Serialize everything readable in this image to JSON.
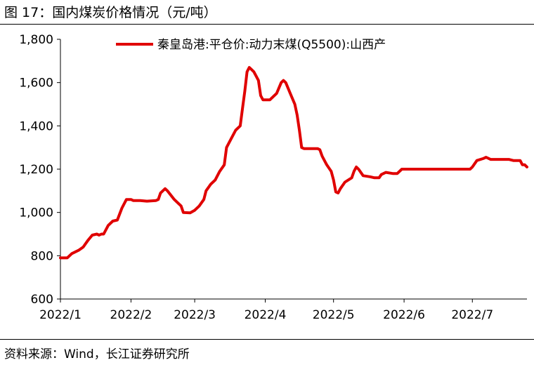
{
  "figure": {
    "title": "图 17：国内煤炭价格情况（元/吨）",
    "source": "资料来源：Wind，长江证券研究所"
  },
  "colors": {
    "series": "#e00000",
    "axis": "#000000"
  },
  "chart_data": {
    "type": "line",
    "title": "",
    "xlabel": "",
    "ylabel": "",
    "ylim": [
      600,
      1800
    ],
    "yticks": [
      600,
      800,
      1000,
      1200,
      1400,
      1600,
      1800
    ],
    "ytick_labels": [
      "600",
      "800",
      "1,000",
      "1,200",
      "1,400",
      "1,600",
      "1,800"
    ],
    "xlim": [
      "2022-01-01",
      "2022-07-25"
    ],
    "xticks": [
      "2022-01-01",
      "2022-02-01",
      "2022-03-01",
      "2022-04-01",
      "2022-05-01",
      "2022-06-01",
      "2022-07-01"
    ],
    "xtick_labels": [
      "2022/1",
      "2022/2",
      "2022/3",
      "2022/4",
      "2022/5",
      "2022/6",
      "2022/7"
    ],
    "grid": false,
    "legend": {
      "position": "top-center"
    },
    "series": [
      {
        "name": "秦皇岛港:平仓价:动力末煤(Q5500):山西产",
        "points": [
          [
            "2022-01-01",
            790
          ],
          [
            "2022-01-04",
            790
          ],
          [
            "2022-01-06",
            810
          ],
          [
            "2022-01-09",
            825
          ],
          [
            "2022-01-11",
            840
          ],
          [
            "2022-01-13",
            870
          ],
          [
            "2022-01-15",
            895
          ],
          [
            "2022-01-17",
            900
          ],
          [
            "2022-01-18",
            895
          ],
          [
            "2022-01-19",
            900
          ],
          [
            "2022-01-20",
            900
          ],
          [
            "2022-01-22",
            940
          ],
          [
            "2022-01-24",
            960
          ],
          [
            "2022-01-26",
            965
          ],
          [
            "2022-01-28",
            1020
          ],
          [
            "2022-01-30",
            1060
          ],
          [
            "2022-02-01",
            1060
          ],
          [
            "2022-02-02",
            1055
          ],
          [
            "2022-02-05",
            1055
          ],
          [
            "2022-02-08",
            1052
          ],
          [
            "2022-02-12",
            1055
          ],
          [
            "2022-02-13",
            1060
          ],
          [
            "2022-02-14",
            1090
          ],
          [
            "2022-02-16",
            1110
          ],
          [
            "2022-02-17",
            1100
          ],
          [
            "2022-02-20",
            1060
          ],
          [
            "2022-02-23",
            1030
          ],
          [
            "2022-02-24",
            1000
          ],
          [
            "2022-02-27",
            998
          ],
          [
            "2022-03-01",
            1010
          ],
          [
            "2022-03-03",
            1030
          ],
          [
            "2022-03-05",
            1060
          ],
          [
            "2022-03-06",
            1100
          ],
          [
            "2022-03-08",
            1130
          ],
          [
            "2022-03-10",
            1150
          ],
          [
            "2022-03-12",
            1190
          ],
          [
            "2022-03-14",
            1220
          ],
          [
            "2022-03-15",
            1300
          ],
          [
            "2022-03-17",
            1340
          ],
          [
            "2022-03-19",
            1380
          ],
          [
            "2022-03-21",
            1400
          ],
          [
            "2022-03-22",
            1480
          ],
          [
            "2022-03-23",
            1560
          ],
          [
            "2022-03-24",
            1650
          ],
          [
            "2022-03-25",
            1670
          ],
          [
            "2022-03-26",
            1660
          ],
          [
            "2022-03-27",
            1650
          ],
          [
            "2022-03-29",
            1610
          ],
          [
            "2022-03-30",
            1540
          ],
          [
            "2022-03-31",
            1520
          ],
          [
            "2022-04-03",
            1520
          ],
          [
            "2022-04-06",
            1550
          ],
          [
            "2022-04-08",
            1600
          ],
          [
            "2022-04-09",
            1610
          ],
          [
            "2022-04-10",
            1600
          ],
          [
            "2022-04-12",
            1550
          ],
          [
            "2022-04-14",
            1500
          ],
          [
            "2022-04-15",
            1450
          ],
          [
            "2022-04-16",
            1380
          ],
          [
            "2022-04-17",
            1300
          ],
          [
            "2022-04-18",
            1295
          ],
          [
            "2022-04-24",
            1295
          ],
          [
            "2022-04-25",
            1290
          ],
          [
            "2022-04-26",
            1260
          ],
          [
            "2022-04-28",
            1220
          ],
          [
            "2022-04-30",
            1190
          ],
          [
            "2022-05-01",
            1150
          ],
          [
            "2022-05-02",
            1095
          ],
          [
            "2022-05-03",
            1090
          ],
          [
            "2022-05-04",
            1110
          ],
          [
            "2022-05-06",
            1140
          ],
          [
            "2022-05-09",
            1160
          ],
          [
            "2022-05-10",
            1190
          ],
          [
            "2022-05-11",
            1210
          ],
          [
            "2022-05-12",
            1200
          ],
          [
            "2022-05-14",
            1170
          ],
          [
            "2022-05-17",
            1165
          ],
          [
            "2022-05-19",
            1160
          ],
          [
            "2022-05-21",
            1160
          ],
          [
            "2022-05-22",
            1175
          ],
          [
            "2022-05-24",
            1185
          ],
          [
            "2022-05-27",
            1180
          ],
          [
            "2022-05-29",
            1180
          ],
          [
            "2022-05-31",
            1200
          ],
          [
            "2022-06-30",
            1200
          ],
          [
            "2022-07-01",
            1210
          ],
          [
            "2022-07-03",
            1240
          ],
          [
            "2022-07-06",
            1250
          ],
          [
            "2022-07-07",
            1255
          ],
          [
            "2022-07-09",
            1245
          ],
          [
            "2022-07-17",
            1245
          ],
          [
            "2022-07-19",
            1240
          ],
          [
            "2022-07-22",
            1240
          ],
          [
            "2022-07-23",
            1220
          ],
          [
            "2022-07-24",
            1220
          ],
          [
            "2022-07-25",
            1210
          ]
        ]
      }
    ]
  }
}
